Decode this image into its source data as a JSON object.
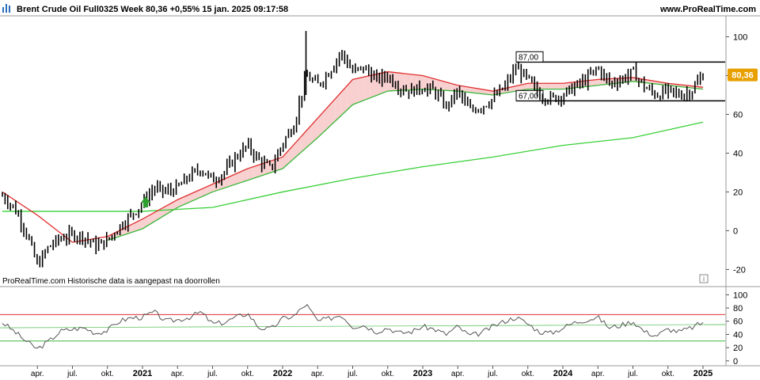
{
  "header": {
    "title": "Brent Crude Oil Full0325 Week 80,36 +0,55% 15 jan. 2025 09:17:58",
    "site": "www.ProRealTime.com"
  },
  "note": "ProRealTime.com  Historische data is aangepast na doorrollen",
  "info_icon": "i",
  "last_price_label": "80,36",
  "colors": {
    "ema_fast": "#e03030",
    "ema_mid": "#3cb83c",
    "ema_slow": "#38d038",
    "fill_up": "#d8f5d8",
    "fill_down": "#f8d0d0",
    "price_tag_bg": "#e8a000",
    "rsi_line": "#555555",
    "rsi_upper": "#e03030",
    "rsi_lower": "#3cb83c",
    "signal_arrow": "#2e9e2e"
  },
  "chart_data": [
    {
      "type": "candlestick",
      "title": "Brent Crude Oil Full0325 Week",
      "y_ticks": [
        -20,
        0,
        20,
        40,
        60,
        80,
        100
      ],
      "ylim": [
        -28,
        110
      ],
      "x_ticks": [
        {
          "label": "apr.",
          "year": false
        },
        {
          "label": "jul.",
          "year": false
        },
        {
          "label": "okt.",
          "year": false
        },
        {
          "label": "2021",
          "year": true
        },
        {
          "label": "apr.",
          "year": false
        },
        {
          "label": "jul.",
          "year": false
        },
        {
          "label": "okt.",
          "year": false
        },
        {
          "label": "2022",
          "year": true
        },
        {
          "label": "apr.",
          "year": false
        },
        {
          "label": "jul.",
          "year": false
        },
        {
          "label": "okt.",
          "year": false
        },
        {
          "label": "2023",
          "year": true
        },
        {
          "label": "apr.",
          "year": false
        },
        {
          "label": "jul.",
          "year": false
        },
        {
          "label": "okt.",
          "year": false
        },
        {
          "label": "2024",
          "year": true
        },
        {
          "label": "apr.",
          "year": false
        },
        {
          "label": "jul.",
          "year": false
        },
        {
          "label": "okt.",
          "year": false
        },
        {
          "label": "2025",
          "year": true
        }
      ],
      "price_path": [
        [
          "2020-01",
          18
        ],
        [
          "2020-02",
          12
        ],
        [
          "2020-03",
          0
        ],
        [
          "2020-04",
          -18
        ],
        [
          "2020-05",
          -8
        ],
        [
          "2020-06",
          -4
        ],
        [
          "2020-07",
          -2
        ],
        [
          "2020-08",
          -3
        ],
        [
          "2020-09",
          -8
        ],
        [
          "2020-10",
          -5
        ],
        [
          "2020-11",
          2
        ],
        [
          "2020-12",
          8
        ],
        [
          "2021-01",
          14
        ],
        [
          "2021-02",
          22
        ],
        [
          "2021-03",
          20
        ],
        [
          "2021-04",
          22
        ],
        [
          "2021-05",
          28
        ],
        [
          "2021-06",
          32
        ],
        [
          "2021-07",
          26
        ],
        [
          "2021-08",
          30
        ],
        [
          "2021-09",
          38
        ],
        [
          "2021-10",
          44
        ],
        [
          "2021-11",
          36
        ],
        [
          "2021-12",
          32
        ],
        [
          "2022-01",
          45
        ],
        [
          "2022-02",
          55
        ],
        [
          "2022-03",
          80
        ],
        [
          "2022-04",
          75
        ],
        [
          "2022-05",
          82
        ],
        [
          "2022-06",
          92
        ],
        [
          "2022-07",
          82
        ],
        [
          "2022-08",
          84
        ],
        [
          "2022-09",
          78
        ],
        [
          "2022-10",
          80
        ],
        [
          "2022-11",
          74
        ],
        [
          "2022-12",
          72
        ],
        [
          "2023-01",
          74
        ],
        [
          "2023-02",
          72
        ],
        [
          "2023-03",
          64
        ],
        [
          "2023-04",
          72
        ],
        [
          "2023-05",
          62
        ],
        [
          "2023-06",
          64
        ],
        [
          "2023-07",
          68
        ],
        [
          "2023-08",
          74
        ],
        [
          "2023-09",
          84
        ],
        [
          "2023-10",
          78
        ],
        [
          "2023-11",
          70
        ],
        [
          "2023-12",
          68
        ],
        [
          "2024-01",
          70
        ],
        [
          "2024-02",
          74
        ],
        [
          "2024-03",
          78
        ],
        [
          "2024-04",
          84
        ],
        [
          "2024-05",
          76
        ],
        [
          "2024-06",
          78
        ],
        [
          "2024-07",
          82
        ],
        [
          "2024-08",
          74
        ],
        [
          "2024-09",
          70
        ],
        [
          "2024-10",
          72
        ],
        [
          "2024-11",
          70
        ],
        [
          "2024-12",
          72
        ],
        [
          "2025-01",
          80.36
        ]
      ],
      "ema_fast_path": [
        [
          "2020-01",
          20
        ],
        [
          "2020-04",
          8
        ],
        [
          "2020-07",
          -6
        ],
        [
          "2020-10",
          -3
        ],
        [
          "2021-01",
          6
        ],
        [
          "2021-04",
          16
        ],
        [
          "2021-07",
          24
        ],
        [
          "2021-10",
          32
        ],
        [
          "2022-01",
          38
        ],
        [
          "2022-04",
          58
        ],
        [
          "2022-07",
          78
        ],
        [
          "2022-10",
          82
        ],
        [
          "2023-01",
          80
        ],
        [
          "2023-04",
          75
        ],
        [
          "2023-07",
          72
        ],
        [
          "2023-10",
          76
        ],
        [
          "2024-01",
          76
        ],
        [
          "2024-04",
          78
        ],
        [
          "2024-07",
          79
        ],
        [
          "2024-10",
          76
        ],
        [
          "2025-01",
          74
        ]
      ],
      "ema_mid_path": [
        [
          "2020-10",
          -5
        ],
        [
          "2021-01",
          1
        ],
        [
          "2021-04",
          12
        ],
        [
          "2021-07",
          20
        ],
        [
          "2021-10",
          26
        ],
        [
          "2022-01",
          32
        ],
        [
          "2022-04",
          48
        ],
        [
          "2022-07",
          65
        ],
        [
          "2022-10",
          72
        ],
        [
          "2023-01",
          73
        ],
        [
          "2023-04",
          72
        ],
        [
          "2023-07",
          70
        ],
        [
          "2023-10",
          73
        ],
        [
          "2024-01",
          73
        ],
        [
          "2024-04",
          75
        ],
        [
          "2024-07",
          77
        ],
        [
          "2024-10",
          75
        ],
        [
          "2025-01",
          73
        ]
      ],
      "ema_slow_path": [
        [
          "2020-01",
          10
        ],
        [
          "2021-01",
          10
        ],
        [
          "2021-07",
          12
        ],
        [
          "2022-01",
          20
        ],
        [
          "2022-07",
          27
        ],
        [
          "2023-01",
          33
        ],
        [
          "2023-07",
          38
        ],
        [
          "2024-01",
          44
        ],
        [
          "2024-07",
          48
        ],
        [
          "2025-01",
          56
        ]
      ],
      "range_box": {
        "upper": 87,
        "lower": 67,
        "upper_label": "87,00",
        "lower_label": "67,00"
      },
      "last_price": 80.36
    },
    {
      "type": "line",
      "title": "RSI",
      "y_ticks": [
        0,
        20,
        40,
        60,
        80,
        100
      ],
      "ylim": [
        -5,
        110
      ],
      "upper_level": 70,
      "lower_level": 30,
      "rsi_path": [
        [
          "2020-01",
          58
        ],
        [
          "2020-02",
          45
        ],
        [
          "2020-03",
          30
        ],
        [
          "2020-04",
          18
        ],
        [
          "2020-05",
          30
        ],
        [
          "2020-06",
          45
        ],
        [
          "2020-07",
          48
        ],
        [
          "2020-08",
          50
        ],
        [
          "2020-09",
          42
        ],
        [
          "2020-10",
          46
        ],
        [
          "2020-11",
          60
        ],
        [
          "2020-12",
          65
        ],
        [
          "2021-01",
          66
        ],
        [
          "2021-02",
          74
        ],
        [
          "2021-03",
          60
        ],
        [
          "2021-04",
          62
        ],
        [
          "2021-05",
          66
        ],
        [
          "2021-06",
          74
        ],
        [
          "2021-07",
          56
        ],
        [
          "2021-08",
          58
        ],
        [
          "2021-09",
          66
        ],
        [
          "2021-10",
          72
        ],
        [
          "2021-11",
          50
        ],
        [
          "2021-12",
          48
        ],
        [
          "2022-01",
          64
        ],
        [
          "2022-02",
          68
        ],
        [
          "2022-03",
          86
        ],
        [
          "2022-04",
          60
        ],
        [
          "2022-05",
          64
        ],
        [
          "2022-06",
          70
        ],
        [
          "2022-07",
          52
        ],
        [
          "2022-08",
          54
        ],
        [
          "2022-09",
          44
        ],
        [
          "2022-10",
          50
        ],
        [
          "2022-11",
          42
        ],
        [
          "2022-12",
          44
        ],
        [
          "2023-01",
          52
        ],
        [
          "2023-02",
          48
        ],
        [
          "2023-03",
          40
        ],
        [
          "2023-04",
          52
        ],
        [
          "2023-05",
          38
        ],
        [
          "2023-06",
          42
        ],
        [
          "2023-07",
          52
        ],
        [
          "2023-08",
          60
        ],
        [
          "2023-09",
          66
        ],
        [
          "2023-10",
          56
        ],
        [
          "2023-11",
          44
        ],
        [
          "2023-12",
          42
        ],
        [
          "2024-01",
          50
        ],
        [
          "2024-02",
          58
        ],
        [
          "2024-03",
          62
        ],
        [
          "2024-04",
          66
        ],
        [
          "2024-05",
          50
        ],
        [
          "2024-06",
          54
        ],
        [
          "2024-07",
          60
        ],
        [
          "2024-08",
          44
        ],
        [
          "2024-09",
          38
        ],
        [
          "2024-10",
          48
        ],
        [
          "2024-11",
          44
        ],
        [
          "2024-12",
          50
        ],
        [
          "2025-01",
          58
        ]
      ]
    }
  ]
}
